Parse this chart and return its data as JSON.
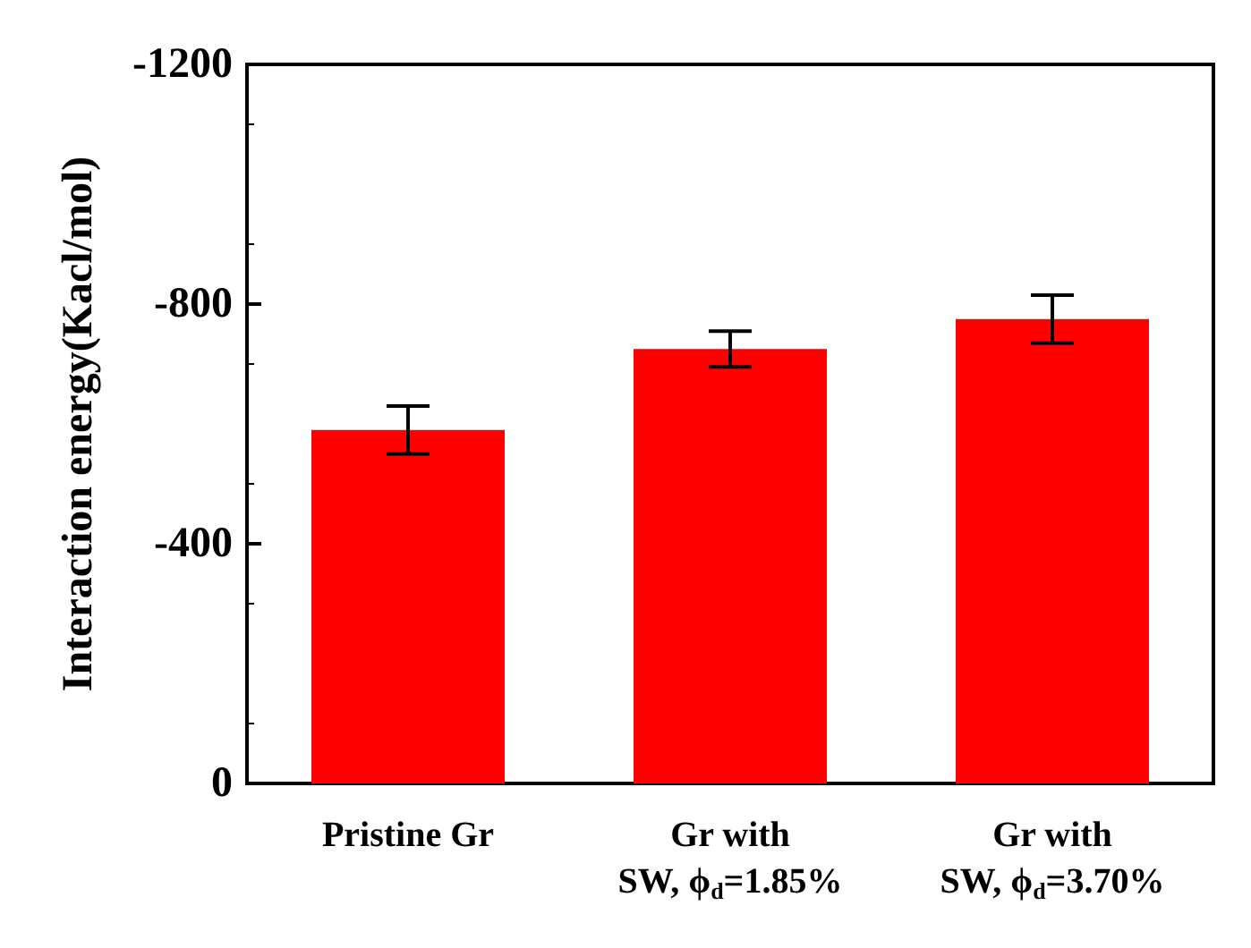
{
  "chart_data": {
    "type": "bar",
    "ylabel": "Interaction energy(Kacl/mol)",
    "categories": [
      "Pristine Gr",
      "Gr with\nSW, ϕ$_{d}$=1.85%",
      "Gr with\nSW, ϕ$_{d}$=3.70%"
    ],
    "values": [
      -590,
      -725,
      -775
    ],
    "errors": [
      40,
      30,
      40
    ],
    "color": "#ff0000",
    "ylim": [
      0,
      -1200
    ],
    "yticks": [
      0,
      -400,
      -800,
      -1200
    ],
    "grid": false
  }
}
